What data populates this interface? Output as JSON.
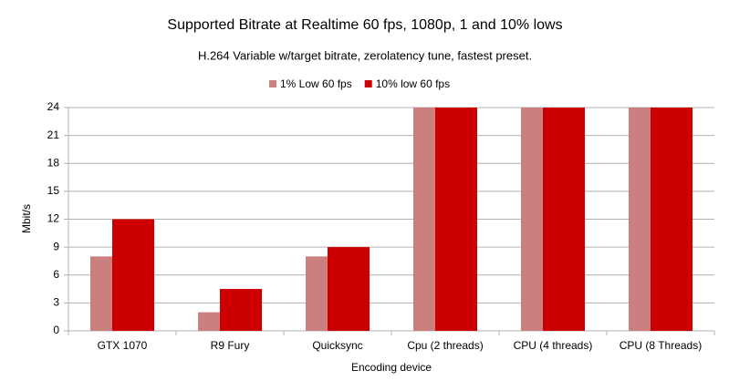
{
  "chart_data": {
    "type": "bar",
    "title": "Supported Bitrate at Realtime 60 fps, 1080p, 1 and 10% lows",
    "subtitle": "H.264 Variable w/target bitrate, zerolatency tune, fastest preset.",
    "x_label": "Encoding device",
    "y_label": "Mbit/s",
    "categories": [
      "GTX 1070",
      "R9 Fury",
      "Quicksync",
      "Cpu (2 threads)",
      "CPU (4 threads)",
      "CPU (8 Threads)"
    ],
    "series": [
      {
        "name": "1% Low 60 fps",
        "color": "#cc7f7f",
        "values": [
          8,
          2,
          8,
          24,
          24,
          24
        ]
      },
      {
        "name": "10% low 60 fps",
        "color": "#cc0000",
        "values": [
          12,
          4.5,
          9,
          24,
          24,
          24
        ]
      }
    ],
    "ylim": [
      0,
      24
    ],
    "yticks": [
      0,
      3,
      6,
      9,
      12,
      15,
      18,
      21,
      24
    ],
    "grid": true,
    "legend": "top"
  }
}
